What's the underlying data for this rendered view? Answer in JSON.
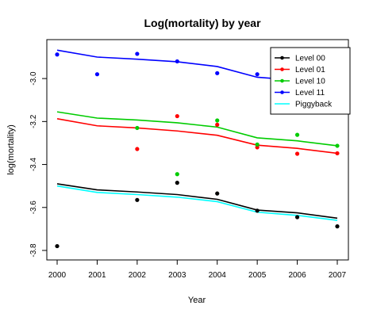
{
  "chart_data": {
    "type": "line",
    "title": "Log(mortality) by year",
    "xlabel": "Year",
    "ylabel": "log(mortality)",
    "x": [
      2000,
      2001,
      2002,
      2003,
      2004,
      2005,
      2006,
      2007
    ],
    "xlim": [
      2000,
      2007
    ],
    "ylim": [
      -3.8,
      -2.9
    ],
    "yticks": [
      -3.8,
      -3.6,
      -3.4,
      -3.2,
      -3.0
    ],
    "ytick_labels": [
      "-3.8",
      "-3.6",
      "-3.4",
      "-3.2",
      "-3.0"
    ],
    "legend_position": "top-right",
    "series": [
      {
        "name": "Level 00",
        "color": "#000000",
        "line": [
          -3.49,
          -3.518,
          -3.528,
          -3.54,
          -3.562,
          -3.612,
          -3.625,
          -3.65
        ],
        "points": [
          [
            2000,
            -3.78
          ],
          [
            2002,
            -3.565
          ],
          [
            2003,
            -3.485
          ],
          [
            2004,
            -3.535
          ],
          [
            2005,
            -3.615
          ],
          [
            2006,
            -3.645
          ],
          [
            2007,
            -3.688
          ]
        ]
      },
      {
        "name": "Level 01",
        "color": "#ff0000",
        "line": [
          -3.187,
          -3.22,
          -3.23,
          -3.244,
          -3.264,
          -3.31,
          -3.325,
          -3.348
        ],
        "points": [
          [
            2002,
            -3.328
          ],
          [
            2003,
            -3.175
          ],
          [
            2004,
            -3.215
          ],
          [
            2005,
            -3.32
          ],
          [
            2006,
            -3.35
          ],
          [
            2007,
            -3.348
          ]
        ]
      },
      {
        "name": "Level 10",
        "color": "#00cc00",
        "line": [
          -3.155,
          -3.184,
          -3.193,
          -3.206,
          -3.226,
          -3.276,
          -3.29,
          -3.313
        ],
        "points": [
          [
            2002,
            -3.23
          ],
          [
            2003,
            -3.445
          ],
          [
            2004,
            -3.195
          ],
          [
            2005,
            -3.307
          ],
          [
            2006,
            -3.262
          ],
          [
            2007,
            -3.313
          ]
        ]
      },
      {
        "name": "Level 11",
        "color": "#0000ff",
        "line": [
          -2.868,
          -2.9,
          -2.91,
          -2.922,
          -2.944,
          -2.994,
          -3.008,
          -3.03
        ],
        "points": [
          [
            2000,
            -2.888
          ],
          [
            2001,
            -2.98
          ],
          [
            2002,
            -2.885
          ],
          [
            2003,
            -2.92
          ],
          [
            2004,
            -2.975
          ],
          [
            2005,
            -2.98
          ]
        ]
      },
      {
        "name": "Piggyback",
        "color": "#00ffff",
        "line": [
          -3.5,
          -3.53,
          -3.54,
          -3.552,
          -3.573,
          -3.622,
          -3.637,
          -3.66
        ],
        "points": []
      }
    ]
  }
}
